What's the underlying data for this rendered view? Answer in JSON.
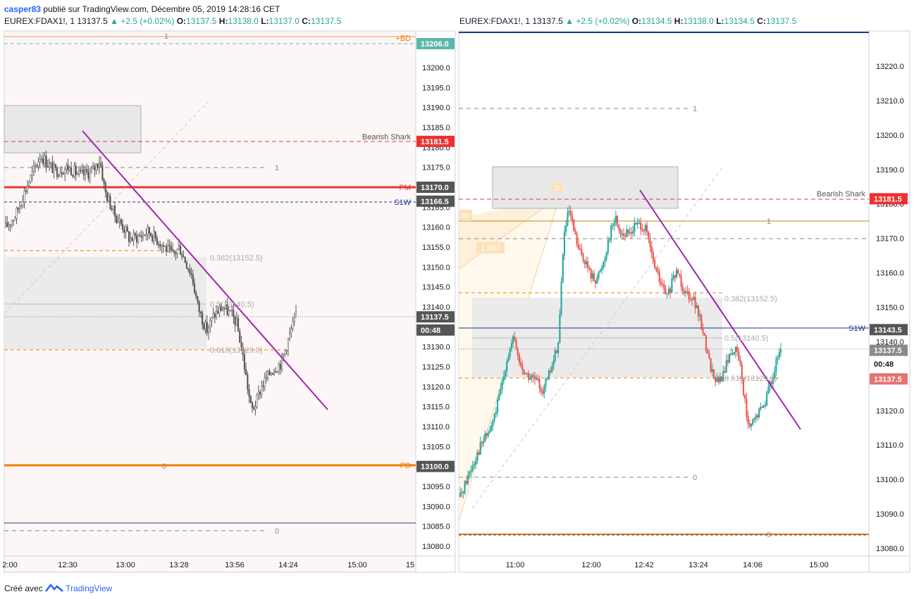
{
  "header": {
    "user": "casper83",
    "published_text": "publié sur TradingView.com, Décembre 05, 2019 14:28:16 CET"
  },
  "colors": {
    "up": "#26a69a",
    "down": "#ef5350",
    "trendline": "#9c27b0",
    "red_line": "#e53935",
    "orange": "#f57c00",
    "blue_line": "#1e3a8a",
    "axis_text": "#131722"
  },
  "charts": [
    {
      "ohlc": {
        "symbol": "EUREX:FDAX1!, 1",
        "last": "13137.5",
        "change": "▲ +2.5 (+0.02%)",
        "o_label": "O:",
        "o": "13137.5",
        "h_label": "H:",
        "h": "13138.0",
        "l_label": "L:",
        "l": "13137.0",
        "c_label": "C:",
        "c": "13137.5"
      },
      "price_labels": [
        {
          "text": "13206.0",
          "bg": "#5cb8ac",
          "y": 13206
        },
        {
          "text": "13181.5",
          "bg": "#ef2f2f",
          "y": 13181.5
        },
        {
          "text": "13170.0",
          "bg": "#555555",
          "y": 13170
        },
        {
          "text": "13166.5",
          "bg": "#555555",
          "y": 13166.5
        },
        {
          "text": "13137.5",
          "bg": "#555555",
          "y": 13137.5
        },
        {
          "text": "00:48",
          "bg": "#555555",
          "y": 13134.2
        },
        {
          "text": "13100.0",
          "bg": "#555555",
          "y": 13100
        }
      ],
      "line_labels": {
        "bd": "+BD",
        "pm": "PM",
        "s1w": "S1W",
        "pd": "PD",
        "shark": "Bearish Shark"
      },
      "fib_labels": [
        "1",
        "0.382(13152.5)",
        "0.5(13140.5)",
        "0.618(13129.0)",
        "0",
        "1",
        "0"
      ]
    },
    {
      "ohlc": {
        "symbol": "EUREX:FDAX1!, 1",
        "last": "13137.5",
        "change": "▲ +2.5 (+0.02%)",
        "o_label": "O:",
        "o": "13134.5",
        "h_label": "H:",
        "h": "13138.0",
        "l_label": "L:",
        "l": "13134.5",
        "c_label": "C:",
        "c": "13137.5"
      },
      "price_labels": [
        {
          "text": "13181.5",
          "bg": "#ef2f2f",
          "y": 13181.5
        },
        {
          "text": "13143.5",
          "bg": "#555555",
          "y": 13143.5
        },
        {
          "text": "13137.5",
          "bg": "#8a8a8a",
          "y": 13137.5
        },
        {
          "text": "00:48",
          "bg": "#ffffff",
          "y": 13133.5
        },
        {
          "text": "13137.5",
          "bg": "#e57373",
          "y": 13129.2
        }
      ],
      "line_labels": {
        "s1w": "S1W",
        "shark": "Bearish Shark",
        "d": "D",
        "pct": "1.463",
        "b": "B1"
      },
      "fib_labels": [
        "1",
        "1",
        "0.382(13152.5)",
        "0.5(13140.5)",
        "0.618(13129.0)",
        "0",
        "0"
      ]
    }
  ],
  "chart_data": [
    {
      "type": "candlestick",
      "title": "EUREX:FDAX1!, 1",
      "ylim": [
        13077,
        13212
      ],
      "y_ticks": [
        13080,
        13085,
        13090,
        13095,
        13100,
        13105,
        13110,
        13115,
        13120,
        13125,
        13130,
        13135,
        13140,
        13145,
        13150,
        13155,
        13160,
        13165,
        13170,
        13175,
        13180,
        13185,
        13190,
        13195,
        13200
      ],
      "y_tick_labels": [
        "13080.0",
        "13085.0",
        "13090.0",
        "13095.0",
        "13100.0",
        "13105.0",
        "13110.0",
        "13115.0",
        "13120.0",
        "13125.0",
        "13130.0",
        "13135.0",
        "13140.0",
        "13145.0",
        "13150.0",
        "13155.0",
        "13160.0",
        "13165.0",
        "13170.0",
        "13175.0",
        "13180.0",
        "13185.0",
        "13190.0",
        "13195.0",
        "13200.0"
      ],
      "x_tick_labels": [
        "2:00",
        "12:30",
        "13:00",
        "13:28",
        "13:56",
        "14:24",
        "15:00",
        "15"
      ],
      "close_path": [
        [
          0,
          13160
        ],
        [
          8,
          13163
        ],
        [
          18,
          13171
        ],
        [
          28,
          13178
        ],
        [
          40,
          13174
        ],
        [
          50,
          13175
        ],
        [
          60,
          13173
        ],
        [
          70,
          13174
        ],
        [
          76,
          13177
        ],
        [
          80,
          13169
        ],
        [
          88,
          13163
        ],
        [
          95,
          13160
        ],
        [
          100,
          13157
        ],
        [
          110,
          13158
        ],
        [
          115,
          13159
        ],
        [
          125,
          13156
        ],
        [
          135,
          13153
        ],
        [
          140,
          13155
        ],
        [
          150,
          13148
        ],
        [
          155,
          13140
        ],
        [
          162,
          13134
        ],
        [
          168,
          13138
        ],
        [
          175,
          13140
        ],
        [
          182,
          13138
        ],
        [
          186,
          13136
        ],
        [
          190,
          13130
        ],
        [
          194,
          13122
        ],
        [
          198,
          13114
        ],
        [
          202,
          13116
        ],
        [
          206,
          13120
        ],
        [
          210,
          13122
        ],
        [
          214,
          13124
        ],
        [
          218,
          13125
        ],
        [
          222,
          13126
        ],
        [
          226,
          13130
        ],
        [
          230,
          13134
        ],
        [
          234,
          13137.5
        ]
      ],
      "last_price": 13137.5
    },
    {
      "type": "candlestick",
      "title": "EUREX:FDAX1!, 1",
      "ylim": [
        13077,
        13228
      ],
      "y_ticks": [
        13080,
        13090,
        13100,
        13110,
        13120,
        13130,
        13140,
        13150,
        13160,
        13170,
        13180,
        13190,
        13200,
        13210,
        13220
      ],
      "y_tick_labels": [
        "13080.0",
        "13090.0",
        "13100.0",
        "13110.0",
        "13120.0",
        "13130.0",
        "13140.0",
        "13150.0",
        "13160.0",
        "13170.0",
        "13180.0",
        "13190.0",
        "13200.0",
        "13210.0",
        "13220.0"
      ],
      "x_tick_labels": [
        "11:00",
        "12:00",
        "12:42",
        "13:24",
        "14:06",
        "15:00"
      ],
      "close_path": [
        [
          0,
          13095
        ],
        [
          10,
          13103
        ],
        [
          20,
          13110
        ],
        [
          30,
          13115
        ],
        [
          38,
          13124
        ],
        [
          45,
          13135
        ],
        [
          52,
          13141
        ],
        [
          58,
          13133
        ],
        [
          65,
          13130
        ],
        [
          72,
          13129
        ],
        [
          80,
          13126
        ],
        [
          88,
          13132
        ],
        [
          95,
          13140
        ],
        [
          100,
          13170
        ],
        [
          105,
          13178
        ],
        [
          110,
          13172
        ],
        [
          115,
          13166
        ],
        [
          120,
          13164
        ],
        [
          125,
          13160
        ],
        [
          130,
          13158
        ],
        [
          135,
          13160
        ],
        [
          140,
          13165
        ],
        [
          145,
          13172
        ],
        [
          150,
          13176
        ],
        [
          155,
          13172
        ],
        [
          160,
          13171
        ],
        [
          165,
          13172
        ],
        [
          170,
          13174
        ],
        [
          175,
          13174
        ],
        [
          180,
          13172
        ],
        [
          185,
          13165
        ],
        [
          190,
          13160
        ],
        [
          195,
          13156
        ],
        [
          200,
          13153
        ],
        [
          205,
          13157
        ],
        [
          210,
          13161
        ],
        [
          215,
          13156
        ],
        [
          220,
          13154
        ],
        [
          225,
          13153
        ],
        [
          230,
          13148
        ],
        [
          235,
          13143
        ],
        [
          240,
          13135
        ],
        [
          245,
          13130
        ],
        [
          250,
          13128
        ],
        [
          255,
          13131
        ],
        [
          260,
          13136
        ],
        [
          265,
          13138
        ],
        [
          270,
          13135
        ],
        [
          273,
          13128
        ],
        [
          276,
          13121
        ],
        [
          279,
          13114
        ],
        [
          282,
          13116
        ],
        [
          286,
          13118
        ],
        [
          290,
          13120
        ],
        [
          294,
          13122
        ],
        [
          298,
          13126
        ],
        [
          302,
          13130
        ],
        [
          306,
          13134
        ],
        [
          310,
          13137.5
        ]
      ],
      "last_price": 13137.5
    }
  ],
  "footer": {
    "created_with": "Créé avec",
    "brand": "TradingView"
  }
}
